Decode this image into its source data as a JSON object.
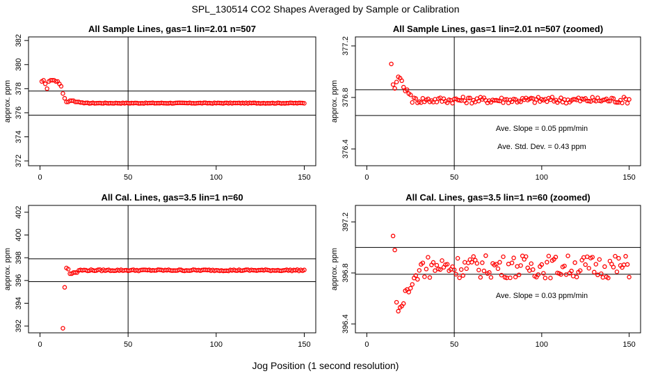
{
  "figure": {
    "title": "SPL_130514  CO2 Shapes Averaged by Sample or Calibration",
    "xlabel": "Jog Position (1 second resolution)"
  },
  "chart_data": [
    {
      "type": "scatter",
      "title": "All Sample Lines, gas=1 lin=2.01 n=507",
      "xlabel": "",
      "ylabel": "approx. ppm",
      "xlim": [
        0,
        150
      ],
      "ylim": [
        371.6,
        382.3
      ],
      "xticks": [
        0,
        50,
        100,
        150
      ],
      "yticks": [
        372,
        374,
        376,
        378,
        380,
        382
      ],
      "hlines": [
        375.8,
        377.8
      ],
      "vline": 50,
      "marker_color": "#ff0000",
      "annotations": [],
      "seed_x": [
        1,
        2,
        3,
        4,
        5,
        6,
        7,
        8,
        9,
        10,
        11,
        12,
        13,
        14,
        15,
        16,
        17,
        18,
        19,
        20,
        21,
        22,
        23,
        24,
        25
      ],
      "seed_y": [
        378.6,
        378.7,
        378.4,
        378.0,
        378.6,
        378.7,
        378.7,
        378.7,
        378.6,
        378.6,
        378.4,
        378.2,
        377.6,
        377.2,
        376.9,
        376.9,
        377.0,
        377.0,
        377.0,
        376.9,
        376.9,
        376.9,
        376.85,
        376.85,
        376.8
      ],
      "tail_x": [
        26,
        150
      ],
      "tail_level": 376.8,
      "tail_jitter": 0.03
    },
    {
      "type": "scatter",
      "title": "All Sample Lines, gas=1 lin=2.01 n=507 (zoomed)",
      "xlabel": "",
      "ylabel": "approx. ppm",
      "xlim": [
        0,
        150
      ],
      "ylim": [
        376.27,
        377.27
      ],
      "xticks": [
        0,
        50,
        100,
        150
      ],
      "yticks": [
        376.4,
        376.8,
        377.2
      ],
      "hlines": [
        376.66,
        376.86
      ],
      "vline": 50,
      "marker_color": "#ff0000",
      "annotations": [
        "Ave. Slope =  0.05  ppm/min",
        "Ave. Std. Dev. =  0.43  ppm"
      ],
      "seed_x": [
        14,
        15,
        16,
        17,
        18,
        19,
        20,
        21,
        22,
        23,
        24,
        25
      ],
      "seed_y": [
        377.06,
        376.9,
        376.87,
        376.92,
        376.96,
        376.95,
        376.93,
        376.88,
        376.85,
        376.86,
        376.83,
        376.82
      ],
      "tail_x": [
        26,
        150
      ],
      "tail_level": 376.78,
      "tail_jitter": 0.025
    },
    {
      "type": "scatter",
      "title": "All Cal. Lines, gas=3.5 lin=1 n=60",
      "xlabel": "",
      "ylabel": "approx. ppm",
      "xlim": [
        0,
        150
      ],
      "ylim": [
        391.4,
        402.6
      ],
      "xticks": [
        0,
        50,
        100,
        150
      ],
      "yticks": [
        392,
        394,
        396,
        398,
        400,
        402
      ],
      "hlines": [
        395.9,
        397.9
      ],
      "vline": 50,
      "marker_color": "#ff0000",
      "annotations": [],
      "seed_x": [
        13,
        14,
        15,
        16,
        17,
        18,
        19,
        20,
        21
      ],
      "seed_y": [
        391.8,
        395.4,
        397.1,
        397.0,
        396.6,
        396.6,
        396.7,
        396.7,
        396.7
      ],
      "tail_x": [
        22,
        150
      ],
      "tail_level": 396.9,
      "tail_jitter": 0.06
    },
    {
      "type": "scatter",
      "title": "All Cal. Lines, gas=3.5 lin=1 n=60 (zoomed)",
      "xlabel": "",
      "ylabel": "approx. ppm",
      "xlim": [
        0,
        150
      ],
      "ylim": [
        396.33,
        397.33
      ],
      "xticks": [
        0,
        50,
        100,
        150
      ],
      "yticks": [
        396.4,
        396.8,
        397.2
      ],
      "hlines": [
        396.79,
        397.0
      ],
      "vline": 50,
      "marker_color": "#ff0000",
      "annotations": [
        "Ave. Slope =  0.03  ppm/min"
      ],
      "seed_x": [
        15,
        16,
        17,
        18,
        19,
        20,
        21,
        22,
        23,
        24,
        25,
        26,
        27,
        28,
        29,
        30
      ],
      "seed_y": [
        397.09,
        396.98,
        396.57,
        396.5,
        396.53,
        396.54,
        396.56,
        396.66,
        396.67,
        396.65,
        396.68,
        396.71,
        396.76,
        396.78,
        396.75,
        396.82
      ],
      "tail_x": [
        31,
        150
      ],
      "tail_level": 396.85,
      "tail_jitter": 0.09
    }
  ]
}
